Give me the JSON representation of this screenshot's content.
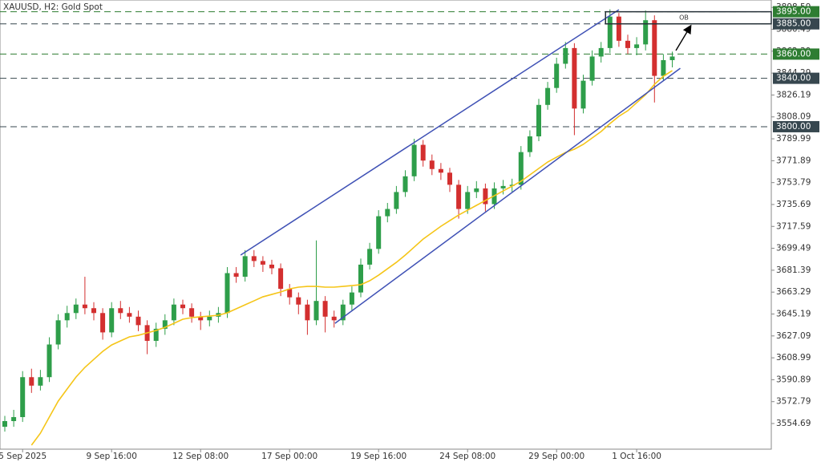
{
  "chart_data": {
    "type": "candlestick",
    "title": "XAUUSD, H2:  Gold Spot",
    "categories": [
      null,
      null,
      "5 Sep 2025",
      null,
      null,
      null,
      null,
      null,
      null,
      null,
      null,
      null,
      "9 Sep 16:00",
      null,
      null,
      null,
      null,
      null,
      null,
      null,
      null,
      null,
      "12 Sep 08:00",
      null,
      null,
      null,
      null,
      null,
      null,
      null,
      null,
      null,
      "17 Sep 00:00",
      null,
      null,
      null,
      null,
      null,
      null,
      null,
      null,
      null,
      "19 Sep 16:00",
      null,
      null,
      null,
      null,
      null,
      null,
      null,
      null,
      null,
      "24 Sep 08:00",
      null,
      null,
      null,
      null,
      null,
      null,
      null,
      null,
      null,
      "29 Sep 00:00",
      null,
      null,
      null,
      null,
      null,
      null,
      null,
      null,
      "1 Oct 16:00",
      null,
      null,
      null,
      null
    ],
    "open": [
      3552,
      3556.7,
      3560,
      3593,
      3586,
      3593,
      3620,
      3640,
      3646,
      3653,
      3650,
      3646,
      3630,
      3650,
      3646,
      3643,
      3636,
      3623,
      3633,
      3640,
      3653,
      3650,
      3643,
      3640,
      3643,
      3646,
      3679,
      3676,
      3693,
      3689,
      3686,
      3683,
      3666,
      3659,
      3653,
      3640,
      3656,
      3643,
      3640,
      3653,
      3663,
      3686,
      3699,
      3726,
      3732,
      3746,
      3759,
      3785,
      3772,
      3765,
      3762,
      3752,
      3732,
      3746,
      3749,
      3736,
      3749,
      3751,
      3752,
      3779,
      3792,
      3818,
      3832,
      3852,
      3865,
      3815,
      3838,
      3858,
      3865,
      3891,
      3871,
      3865,
      3868,
      3888,
      3842,
      3855
    ],
    "high": [
      3561,
      3566,
      3598,
      3600,
      3599,
      3626,
      3645,
      3652,
      3658,
      3676,
      3655,
      3650,
      3655,
      3656,
      3651,
      3648,
      3640,
      3638,
      3645,
      3658,
      3657,
      3654,
      3647,
      3648,
      3651,
      3684,
      3684,
      3698,
      3698,
      3693,
      3690,
      3687,
      3670,
      3663,
      3657,
      3706,
      3660,
      3648,
      3657,
      3668,
      3691,
      3704,
      3731,
      3737,
      3751,
      3764,
      3790,
      3789,
      3777,
      3770,
      3766,
      3756,
      3751,
      3755,
      3753,
      3754,
      3756,
      3757,
      3784,
      3797,
      3823,
      3837,
      3857,
      3870,
      3869,
      3843,
      3863,
      3870,
      3897,
      3894,
      3876,
      3874,
      3896,
      3892,
      3860,
      3862
    ],
    "low": [
      3548,
      3552,
      3556,
      3580,
      3582,
      3589,
      3616,
      3634,
      3641,
      3645,
      3640,
      3624,
      3626,
      3641,
      3638,
      3631,
      3612,
      3618,
      3628,
      3636,
      3645,
      3638,
      3632,
      3635,
      3638,
      3642,
      3671,
      3672,
      3684,
      3680,
      3678,
      3660,
      3653,
      3645,
      3628,
      3636,
      3630,
      3634,
      3636,
      3648,
      3659,
      3682,
      3695,
      3721,
      3728,
      3742,
      3755,
      3767,
      3760,
      3756,
      3746,
      3724,
      3728,
      3741,
      3730,
      3732,
      3744,
      3746,
      3748,
      3775,
      3788,
      3814,
      3828,
      3848,
      3793,
      3811,
      3834,
      3853,
      3861,
      3866,
      3860,
      3859,
      3863,
      3820,
      3838,
      3849
    ],
    "close": [
      3556.7,
      3560,
      3593,
      3586,
      3593,
      3620,
      3640,
      3646,
      3653,
      3650,
      3646,
      3630,
      3650,
      3646,
      3643,
      3636,
      3623,
      3633,
      3640,
      3653,
      3650,
      3643,
      3640,
      3643,
      3646,
      3679,
      3676,
      3693,
      3689,
      3686,
      3683,
      3666,
      3659,
      3653,
      3640,
      3656,
      3643,
      3640,
      3653,
      3663,
      3686,
      3699,
      3726,
      3732,
      3746,
      3759,
      3785,
      3772,
      3765,
      3762,
      3752,
      3732,
      3746,
      3749,
      3736,
      3749,
      3751,
      3752,
      3779,
      3792,
      3818,
      3832,
      3852,
      3865,
      3815,
      3838,
      3858,
      3865,
      3891,
      3871,
      3865,
      3868,
      3888,
      3842,
      3855,
      3858
    ],
    "up_color": "#2e9e4a",
    "down_color": "#d32f2f",
    "moving_average": {
      "color": "#f5c518",
      "values": [
        null,
        null,
        null,
        3536.8,
        3546.7,
        3560,
        3573.2,
        3583.2,
        3593.1,
        3601.1,
        3607.7,
        3614.3,
        3619.6,
        3623,
        3626.3,
        3627.6,
        3629.6,
        3631.6,
        3634.2,
        3637.5,
        3640.9,
        3642.2,
        3642.9,
        3643.5,
        3644.2,
        3646.2,
        3649.5,
        3652.8,
        3656.1,
        3659.4,
        3661.4,
        3663.4,
        3666,
        3667.4,
        3668,
        3668,
        3667.4,
        3667.4,
        3668,
        3668.7,
        3669.4,
        3672.7,
        3677.3,
        3682.6,
        3687.9,
        3693.9,
        3700.5,
        3707.1,
        3712.4,
        3717.7,
        3722.4,
        3727,
        3731,
        3735,
        3739,
        3742.9,
        3746.9,
        3750.9,
        3754.9,
        3760.2,
        3765.5,
        3770.8,
        3774.8,
        3778.7,
        3781.4,
        3785.4,
        3790.7,
        3796,
        3802.6,
        3808.6,
        3813.2,
        3819.8,
        3826.4,
        3835,
        3841.7,
        3846.3
      ]
    },
    "trendlines": [
      {
        "color": "#3f51b5",
        "x": [
          26.5,
          69
        ],
        "y": [
          3693.9,
          3896.7
        ]
      },
      {
        "color": "#3f51b5",
        "x": [
          37.1,
          75.9
        ],
        "y": [
          3637.5,
          3848.3
        ]
      }
    ],
    "levels": [
      {
        "value": 3895,
        "label": "3895.00",
        "color": "#2e7d32"
      },
      {
        "value": 3885,
        "label": "3885.00",
        "color": "#37474f"
      },
      {
        "value": 3860,
        "label": "3860.00",
        "color": "#2e7d32"
      },
      {
        "value": 3840,
        "label": "3840.00",
        "color": "#37474f"
      },
      {
        "value": 3800,
        "label": "3800.00",
        "color": "#37474f"
      }
    ],
    "ob_zone": {
      "label": "OB",
      "x_start": 67.5,
      "top": 3895,
      "bottom": 3885
    },
    "ylim": [
      3533.5,
      3904.7
    ],
    "yticks": [
      3554.69,
      3572.79,
      3590.89,
      3608.99,
      3627.09,
      3645.19,
      3663.29,
      3681.39,
      3699.49,
      3717.59,
      3735.69,
      3753.79,
      3771.89,
      3789.99,
      3808.09,
      3826.19,
      3844.29,
      3862.39,
      3880.49,
      3898.59
    ]
  }
}
